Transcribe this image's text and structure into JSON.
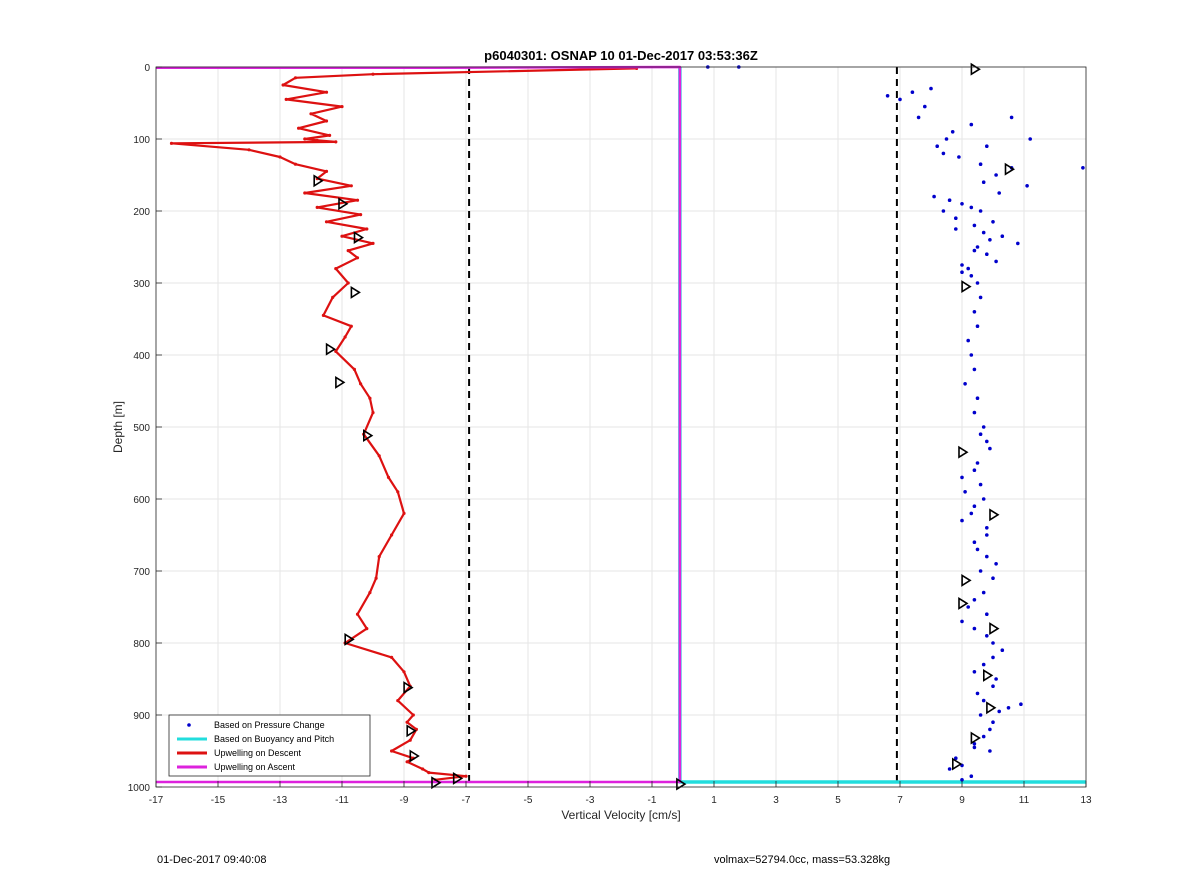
{
  "chart_data": {
    "type": "scatter",
    "title": "p6040301: OSNAP 10 01-Dec-2017 03:53:36Z",
    "xlabel": "Vertical Velocity [cm/s]",
    "ylabel": "Depth [m]",
    "xlim": [
      -17,
      13
    ],
    "ylim": [
      0,
      1000
    ],
    "y_reversed": true,
    "grid": true,
    "xticks": [
      -17,
      -15,
      -13,
      -11,
      -9,
      -7,
      -5,
      -3,
      -1,
      1,
      3,
      5,
      7,
      9,
      11,
      13
    ],
    "yticks": [
      0,
      100,
      200,
      300,
      400,
      500,
      600,
      700,
      800,
      900,
      1000
    ],
    "legend_position": "bottom-left",
    "reference_lines": {
      "x": [
        -6.9,
        6.9
      ],
      "style": "dashed",
      "color": "#000000"
    },
    "series": [
      {
        "name": "Based on Pressure Change",
        "kind": "scatter",
        "color": "#0000cc",
        "x": [
          1.8,
          0.8,
          6.6,
          7.4,
          7.8,
          8.0,
          7.0,
          7.6,
          8.5,
          8.2,
          9.3,
          10.6,
          9.8,
          8.9,
          8.7,
          10.1,
          11.2,
          8.4,
          9.6,
          10.6,
          12.9,
          9.7,
          11.1,
          10.2,
          8.1,
          8.6,
          9.0,
          9.3,
          8.4,
          9.6,
          8.8,
          10.0,
          9.4,
          8.8,
          9.7,
          10.3,
          9.9,
          10.8,
          9.5,
          9.4,
          9.8,
          10.1,
          9.0,
          9.2,
          9.0,
          9.3,
          9.5,
          9.6,
          9.4,
          9.5,
          9.2,
          9.3,
          9.4,
          9.1,
          9.5,
          9.4,
          9.7,
          9.6,
          9.8,
          9.9,
          9.5,
          9.4,
          9.0,
          9.6,
          9.1,
          9.7,
          9.4,
          9.3,
          9.0,
          9.8,
          9.8,
          9.4,
          9.5,
          9.8,
          10.1,
          9.6,
          10.0,
          9.7,
          9.4,
          9.2,
          9.8,
          9.0,
          9.4,
          9.8,
          10.0,
          10.3,
          10.0,
          9.7,
          9.4,
          10.1,
          10.0,
          9.5,
          9.7,
          10.5,
          10.9,
          10.2,
          9.6,
          10.0,
          9.9,
          9.7,
          9.4,
          9.4,
          9.9,
          8.8,
          9.0,
          8.6,
          9.3,
          9.0
        ],
        "y": [
          0,
          0,
          40,
          35,
          55,
          30,
          45,
          70,
          100,
          110,
          80,
          70,
          110,
          125,
          90,
          150,
          100,
          120,
          135,
          140,
          140,
          160,
          165,
          175,
          180,
          185,
          190,
          195,
          200,
          200,
          210,
          215,
          220,
          225,
          230,
          235,
          240,
          245,
          250,
          255,
          260,
          270,
          275,
          280,
          285,
          290,
          300,
          320,
          340,
          360,
          380,
          400,
          420,
          440,
          460,
          480,
          500,
          510,
          520,
          530,
          550,
          560,
          570,
          580,
          590,
          600,
          610,
          620,
          630,
          640,
          650,
          660,
          670,
          680,
          690,
          700,
          710,
          730,
          740,
          750,
          760,
          770,
          780,
          790,
          800,
          810,
          820,
          830,
          840,
          850,
          860,
          870,
          880,
          890,
          885,
          895,
          900,
          910,
          920,
          930,
          940,
          945,
          950,
          960,
          970,
          975,
          985,
          990
        ]
      },
      {
        "name": "Based on Buoyancy and Pitch",
        "kind": "line",
        "color": "#22dddd",
        "x": [
          -0.1,
          -0.1,
          -0.1,
          0.0,
          3.0,
          6.0,
          9.0,
          13.0
        ],
        "y": [
          0,
          500,
          993,
          993,
          993,
          993,
          993,
          993
        ]
      },
      {
        "name": "Upwelling on Descent",
        "kind": "line",
        "color": "#dd1111",
        "x": [
          -1.5,
          -10.0,
          -12.5,
          -12.9,
          -11.5,
          -12.8,
          -11.0,
          -12.0,
          -11.5,
          -12.4,
          -11.4,
          -12.2,
          -11.8,
          -11.2,
          -16.5,
          -14.0,
          -13.0,
          -12.5,
          -11.5,
          -11.8,
          -10.7,
          -12.2,
          -10.5,
          -11.8,
          -10.4,
          -11.5,
          -10.2,
          -11.0,
          -10.0,
          -10.8,
          -10.5,
          -11.2,
          -10.8,
          -11.3,
          -11.6,
          -10.7,
          -10.9,
          -11.2,
          -10.6,
          -10.4,
          -10.1,
          -10.0,
          -10.3,
          -9.8,
          -9.5,
          -9.2,
          -9.0,
          -9.4,
          -9.8,
          -9.9,
          -10.1,
          -10.5,
          -10.2,
          -10.9,
          -9.4,
          -9.0,
          -8.8,
          -9.2,
          -8.7,
          -8.9,
          -8.6,
          -8.8,
          -9.4,
          -8.7,
          -8.9,
          -8.4,
          -8.2,
          -7.0,
          -8.0
        ],
        "y": [
          2,
          10,
          15,
          25,
          35,
          45,
          55,
          65,
          75,
          85,
          95,
          100,
          102,
          104,
          106,
          115,
          125,
          135,
          145,
          155,
          165,
          175,
          185,
          195,
          205,
          215,
          225,
          235,
          245,
          255,
          265,
          280,
          300,
          320,
          345,
          360,
          375,
          395,
          420,
          440,
          460,
          480,
          510,
          540,
          570,
          590,
          620,
          650,
          680,
          710,
          730,
          760,
          780,
          800,
          820,
          840,
          860,
          880,
          900,
          910,
          920,
          935,
          950,
          960,
          965,
          975,
          980,
          985,
          990
        ]
      },
      {
        "name": "Upwelling on Ascent",
        "kind": "line",
        "color": "#dd22dd",
        "x": [
          -17.0,
          -8.0,
          -0.1,
          -0.1,
          -8.0,
          -17.0
        ],
        "y": [
          1,
          1,
          0,
          993,
          993,
          993
        ]
      }
    ],
    "markers": {
      "style": "open-triangle",
      "color": "#000000",
      "points": [
        {
          "x": 9.4,
          "y": 3
        },
        {
          "x": 10.5,
          "y": 142
        },
        {
          "x": -11.8,
          "y": 158
        },
        {
          "x": -11.0,
          "y": 190
        },
        {
          "x": -10.5,
          "y": 237
        },
        {
          "x": -10.6,
          "y": 313
        },
        {
          "x": 9.1,
          "y": 305
        },
        {
          "x": -11.4,
          "y": 392
        },
        {
          "x": -11.1,
          "y": 438
        },
        {
          "x": -10.2,
          "y": 512
        },
        {
          "x": 9.0,
          "y": 535
        },
        {
          "x": 10.0,
          "y": 622
        },
        {
          "x": 9.1,
          "y": 713
        },
        {
          "x": 9.0,
          "y": 745
        },
        {
          "x": 10.0,
          "y": 780
        },
        {
          "x": -10.8,
          "y": 795
        },
        {
          "x": 9.8,
          "y": 845
        },
        {
          "x": -8.9,
          "y": 862
        },
        {
          "x": 9.9,
          "y": 890
        },
        {
          "x": -8.8,
          "y": 922
        },
        {
          "x": 9.4,
          "y": 932
        },
        {
          "x": -8.7,
          "y": 957
        },
        {
          "x": 8.8,
          "y": 968
        },
        {
          "x": -7.3,
          "y": 988
        },
        {
          "x": -8.0,
          "y": 994
        },
        {
          "x": -0.1,
          "y": 996
        }
      ]
    }
  },
  "footer": {
    "left_text": "01-Dec-2017 09:40:08",
    "right_text": "volmax=52794.0cc, mass=53.328kg"
  }
}
